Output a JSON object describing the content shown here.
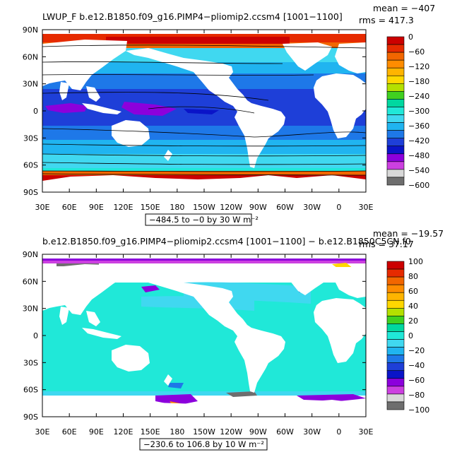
{
  "palette": {
    "ocean_fill": "#1e3fd8",
    "land": "#ffffff",
    "frame": "#000000"
  },
  "chart_data": [
    {
      "type": "map",
      "title": "LWUP_F b.e12.B1850.f09_g16.PIMP4−pliomip2.ccsm4 [1001−1100]",
      "stat_mean_text": "mean = −407",
      "stat_rms_text": "rms = 417.3",
      "range_text": "−484.5 to −0 by 30  W m⁻²",
      "xticks": [
        "30E",
        "60E",
        "90E",
        "120E",
        "150E",
        "180",
        "150W",
        "120W",
        "90W",
        "60W",
        "30W",
        "0",
        "30E"
      ],
      "yticks": [
        "90N",
        "60N",
        "30N",
        "0",
        "30S",
        "60S",
        "90S"
      ],
      "colorbar": {
        "labels": [
          "0",
          "−60",
          "−120",
          "−180",
          "−240",
          "−300",
          "−360",
          "−420",
          "−480",
          "−540",
          "−600"
        ],
        "values": [
          0,
          -60,
          -120,
          -180,
          -240,
          -300,
          -360,
          -420,
          -480,
          -540,
          -600
        ],
        "colors": [
          "#cc0000",
          "#e62a00",
          "#f26600",
          "#ff8c00",
          "#ffb400",
          "#ffd700",
          "#b4e000",
          "#40d020",
          "#00d8a0",
          "#20e8d8",
          "#40d8f0",
          "#20b4f0",
          "#1e78e8",
          "#1e3fd8",
          "#0a14c8",
          "#8c00dc",
          "#cc40e0",
          "#d8d8d8",
          "#6e6e6e"
        ]
      }
    },
    {
      "type": "map",
      "title": "b.e12.B1850.f09_g16.PIMP4−pliomip2.ccsm4 [1001−1100] − b.e12.B1850C5CN.f0",
      "stat_mean_text": "mean = −19.57",
      "stat_rms_text": "rms = 37.17",
      "range_text": "−230.6 to 106.8 by 10  W m⁻²",
      "xticks": [
        "30E",
        "60E",
        "90E",
        "120E",
        "150E",
        "180",
        "150W",
        "120W",
        "90W",
        "60W",
        "30W",
        "0",
        "30E"
      ],
      "yticks": [
        "90N",
        "60N",
        "30N",
        "0",
        "30S",
        "60S",
        "90S"
      ],
      "colorbar": {
        "labels": [
          "100",
          "80",
          "60",
          "40",
          "20",
          "0",
          "−20",
          "−40",
          "−60",
          "−80",
          "−100"
        ],
        "values": [
          100,
          80,
          60,
          40,
          20,
          0,
          -20,
          -40,
          -60,
          -80,
          -100
        ],
        "colors": [
          "#cc0000",
          "#e62a00",
          "#f26600",
          "#ff8c00",
          "#ffb400",
          "#ffd700",
          "#b4e000",
          "#40d020",
          "#00d8a0",
          "#20e8d8",
          "#40d8f0",
          "#20b4f0",
          "#1e78e8",
          "#1e3fd8",
          "#0a14c8",
          "#8c00dc",
          "#cc40e0",
          "#d8d8d8",
          "#6e6e6e"
        ]
      }
    }
  ]
}
